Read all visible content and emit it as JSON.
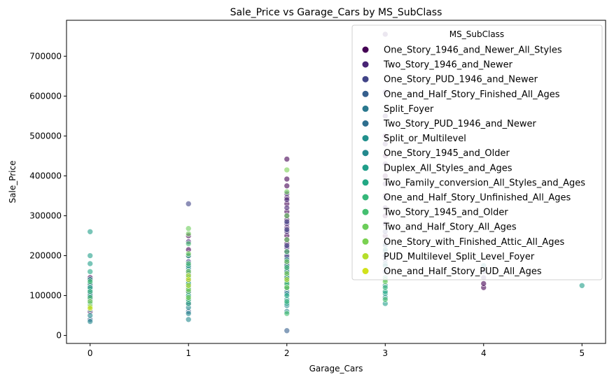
{
  "chart_data": {
    "type": "scatter",
    "title": "Sale_Price vs Garage_Cars by MS_SubClass",
    "xlabel": "Garage_Cars",
    "ylabel": "Sale_Price",
    "xlim": [
      -0.24,
      5.24
    ],
    "ylim": [
      -20000,
      790000
    ],
    "xticks": [
      0,
      1,
      2,
      3,
      4,
      5
    ],
    "yticks": [
      0,
      100000,
      200000,
      300000,
      400000,
      500000,
      600000,
      700000
    ],
    "grid": false,
    "legend": {
      "title": "MS_SubClass",
      "placement": "top-right"
    },
    "series": [
      {
        "name": "One_Story_1946_and_Newer_All_Styles",
        "color": "#440154",
        "points": [
          [
            0,
            60000
          ],
          [
            0,
            95000
          ],
          [
            0,
            125000
          ],
          [
            0,
            145000
          ],
          [
            1,
            80000
          ],
          [
            1,
            110000
          ],
          [
            1,
            140000
          ],
          [
            1,
            175000
          ],
          [
            1,
            215000
          ],
          [
            1,
            250000
          ],
          [
            2,
            130000
          ],
          [
            2,
            160000
          ],
          [
            2,
            185000
          ],
          [
            2,
            210000
          ],
          [
            2,
            230000
          ],
          [
            2,
            250000
          ],
          [
            2,
            270000
          ],
          [
            2,
            290000
          ],
          [
            2,
            310000
          ],
          [
            2,
            330000
          ],
          [
            2,
            345000
          ],
          [
            2,
            375000
          ],
          [
            2,
            392000
          ],
          [
            2,
            442000
          ],
          [
            3,
            200000
          ],
          [
            3,
            250000
          ],
          [
            3,
            300000
          ],
          [
            3,
            350000
          ],
          [
            3,
            400000
          ],
          [
            3,
            450000
          ],
          [
            3,
            500000
          ],
          [
            4,
            120000
          ],
          [
            4,
            130000
          ]
        ]
      },
      {
        "name": "Two_Story_1946_and_Newer",
        "color": "#482475",
        "points": [
          [
            0,
            100000
          ],
          [
            0,
            140000
          ],
          [
            1,
            120000
          ],
          [
            1,
            160000
          ],
          [
            1,
            200000
          ],
          [
            1,
            235000
          ],
          [
            2,
            150000
          ],
          [
            2,
            175000
          ],
          [
            2,
            195000
          ],
          [
            2,
            220000
          ],
          [
            2,
            240000
          ],
          [
            2,
            260000
          ],
          [
            2,
            280000
          ],
          [
            2,
            300000
          ],
          [
            2,
            320000
          ],
          [
            2,
            340000
          ],
          [
            2,
            355000
          ],
          [
            3,
            230000
          ],
          [
            3,
            280000
          ],
          [
            3,
            320000
          ],
          [
            3,
            380000
          ],
          [
            3,
            430000
          ],
          [
            3,
            480000
          ],
          [
            3,
            550000
          ],
          [
            3,
            610000
          ],
          [
            3,
            755000
          ],
          [
            4,
            145000
          ]
        ]
      },
      {
        "name": "One_Story_PUD_1946_and_Newer",
        "color": "#414487",
        "points": [
          [
            0,
            110000
          ],
          [
            1,
            130000
          ],
          [
            1,
            185000
          ],
          [
            1,
            330000
          ],
          [
            2,
            180000
          ],
          [
            2,
            200000
          ],
          [
            2,
            225000
          ],
          [
            2,
            265000
          ],
          [
            2,
            285000
          ],
          [
            3,
            190000
          ],
          [
            3,
            260000
          ],
          [
            3,
            345000
          ],
          [
            4,
            160000
          ]
        ]
      },
      {
        "name": "One_and_Half_Story_Finished_All_Ages",
        "color": "#355F8D",
        "points": [
          [
            0,
            40000
          ],
          [
            0,
            85000
          ],
          [
            0,
            120000
          ],
          [
            1,
            60000
          ],
          [
            1,
            90000
          ],
          [
            1,
            125000
          ],
          [
            1,
            155000
          ],
          [
            2,
            12000
          ],
          [
            2,
            110000
          ],
          [
            2,
            140000
          ],
          [
            2,
            170000
          ],
          [
            3,
            160000
          ],
          [
            3,
            210000
          ]
        ]
      },
      {
        "name": "Split_Foyer",
        "color": "#2A788E",
        "points": [
          [
            0,
            90000
          ],
          [
            1,
            145000
          ],
          [
            1,
            165000
          ],
          [
            2,
            150000
          ],
          [
            2,
            175000
          ],
          [
            3,
            180000
          ]
        ]
      },
      {
        "name": "Two_Story_PUD_1946_and_Newer",
        "color": "#2E6E8E",
        "points": [
          [
            0,
            105000
          ],
          [
            1,
            115000
          ],
          [
            1,
            135000
          ],
          [
            2,
            120000
          ],
          [
            2,
            145000
          ],
          [
            2,
            165000
          ],
          [
            3,
            200000
          ],
          [
            3,
            225000
          ]
        ]
      },
      {
        "name": "Split_or_Multilevel",
        "color": "#21908C",
        "points": [
          [
            0,
            130000
          ],
          [
            1,
            150000
          ],
          [
            1,
            170000
          ],
          [
            2,
            160000
          ],
          [
            2,
            190000
          ],
          [
            3,
            175000
          ],
          [
            3,
            215000
          ]
        ]
      },
      {
        "name": "One_Story_1945_and_Older",
        "color": "#23898E",
        "points": [
          [
            0,
            35000
          ],
          [
            0,
            50000
          ],
          [
            0,
            65000
          ],
          [
            0,
            78000
          ],
          [
            0,
            100000
          ],
          [
            0,
            115000
          ],
          [
            1,
            40000
          ],
          [
            1,
            55000
          ],
          [
            1,
            70000
          ],
          [
            1,
            85000
          ],
          [
            1,
            100000
          ],
          [
            2,
            60000
          ],
          [
            2,
            75000
          ],
          [
            2,
            90000
          ],
          [
            2,
            105000
          ],
          [
            2,
            125000
          ],
          [
            3,
            95000
          ],
          [
            3,
            125000
          ],
          [
            4,
            175000
          ]
        ]
      },
      {
        "name": "Duplex_All_Styles_and_Ages",
        "color": "#1F9E89",
        "points": [
          [
            0,
            80000
          ],
          [
            0,
            140000
          ],
          [
            0,
            180000
          ],
          [
            0,
            200000
          ],
          [
            0,
            260000
          ],
          [
            1,
            100000
          ],
          [
            1,
            130000
          ],
          [
            1,
            175000
          ],
          [
            2,
            80000
          ],
          [
            2,
            120000
          ],
          [
            2,
            145000
          ],
          [
            3,
            80000
          ],
          [
            3,
            105000
          ],
          [
            3,
            145000
          ],
          [
            5,
            125000
          ]
        ]
      },
      {
        "name": "Two_Family_conversion_All_Styles_and_Ages",
        "color": "#22A884",
        "points": [
          [
            0,
            70000
          ],
          [
            0,
            120000
          ],
          [
            0,
            160000
          ],
          [
            1,
            80000
          ],
          [
            1,
            130000
          ],
          [
            1,
            200000
          ],
          [
            2,
            100000
          ],
          [
            2,
            135000
          ],
          [
            3,
            110000
          ]
        ]
      },
      {
        "name": "One_and_Half_Story_Unfinished_All_Ages",
        "color": "#35B779",
        "points": [
          [
            0,
            75000
          ],
          [
            0,
            110000
          ],
          [
            1,
            90000
          ],
          [
            1,
            120000
          ],
          [
            2,
            85000
          ],
          [
            3,
            120000
          ]
        ]
      },
      {
        "name": "Two_Story_1945_and_Older",
        "color": "#44BF70",
        "points": [
          [
            0,
            95000
          ],
          [
            0,
            135000
          ],
          [
            1,
            110000
          ],
          [
            1,
            145000
          ],
          [
            1,
            180000
          ],
          [
            1,
            230000
          ],
          [
            2,
            55000
          ],
          [
            2,
            130000
          ],
          [
            2,
            170000
          ],
          [
            2,
            210000
          ],
          [
            3,
            90000
          ],
          [
            3,
            140000
          ]
        ]
      },
      {
        "name": "Two_and_Half_Story_All_Ages",
        "color": "#6CCD5A",
        "points": [
          [
            1,
            160000
          ],
          [
            1,
            205000
          ],
          [
            1,
            255000
          ],
          [
            1,
            268000
          ],
          [
            2,
            185000
          ],
          [
            2,
            240000
          ],
          [
            2,
            300000
          ],
          [
            2,
            360000
          ],
          [
            3,
            135000
          ]
        ]
      },
      {
        "name": "One_Story_with_Finished_Attic_All_Ages",
        "color": "#7AD151",
        "points": [
          [
            0,
            85000
          ],
          [
            1,
            95000
          ],
          [
            1,
            115000
          ],
          [
            2,
            120000
          ],
          [
            2,
            155000
          ],
          [
            2,
            415000
          ]
        ]
      },
      {
        "name": "PUD_Multilevel_Split_Level_Foyer",
        "color": "#B5DE2B",
        "points": [
          [
            0,
            72000
          ],
          [
            1,
            125000
          ],
          [
            1,
            150000
          ],
          [
            2,
            140000
          ]
        ]
      },
      {
        "name": "One_and_Half_Story_PUD_All_Ages",
        "color": "#D2E21B",
        "points": [
          [
            0,
            68000
          ],
          [
            1,
            140000
          ]
        ]
      }
    ]
  }
}
